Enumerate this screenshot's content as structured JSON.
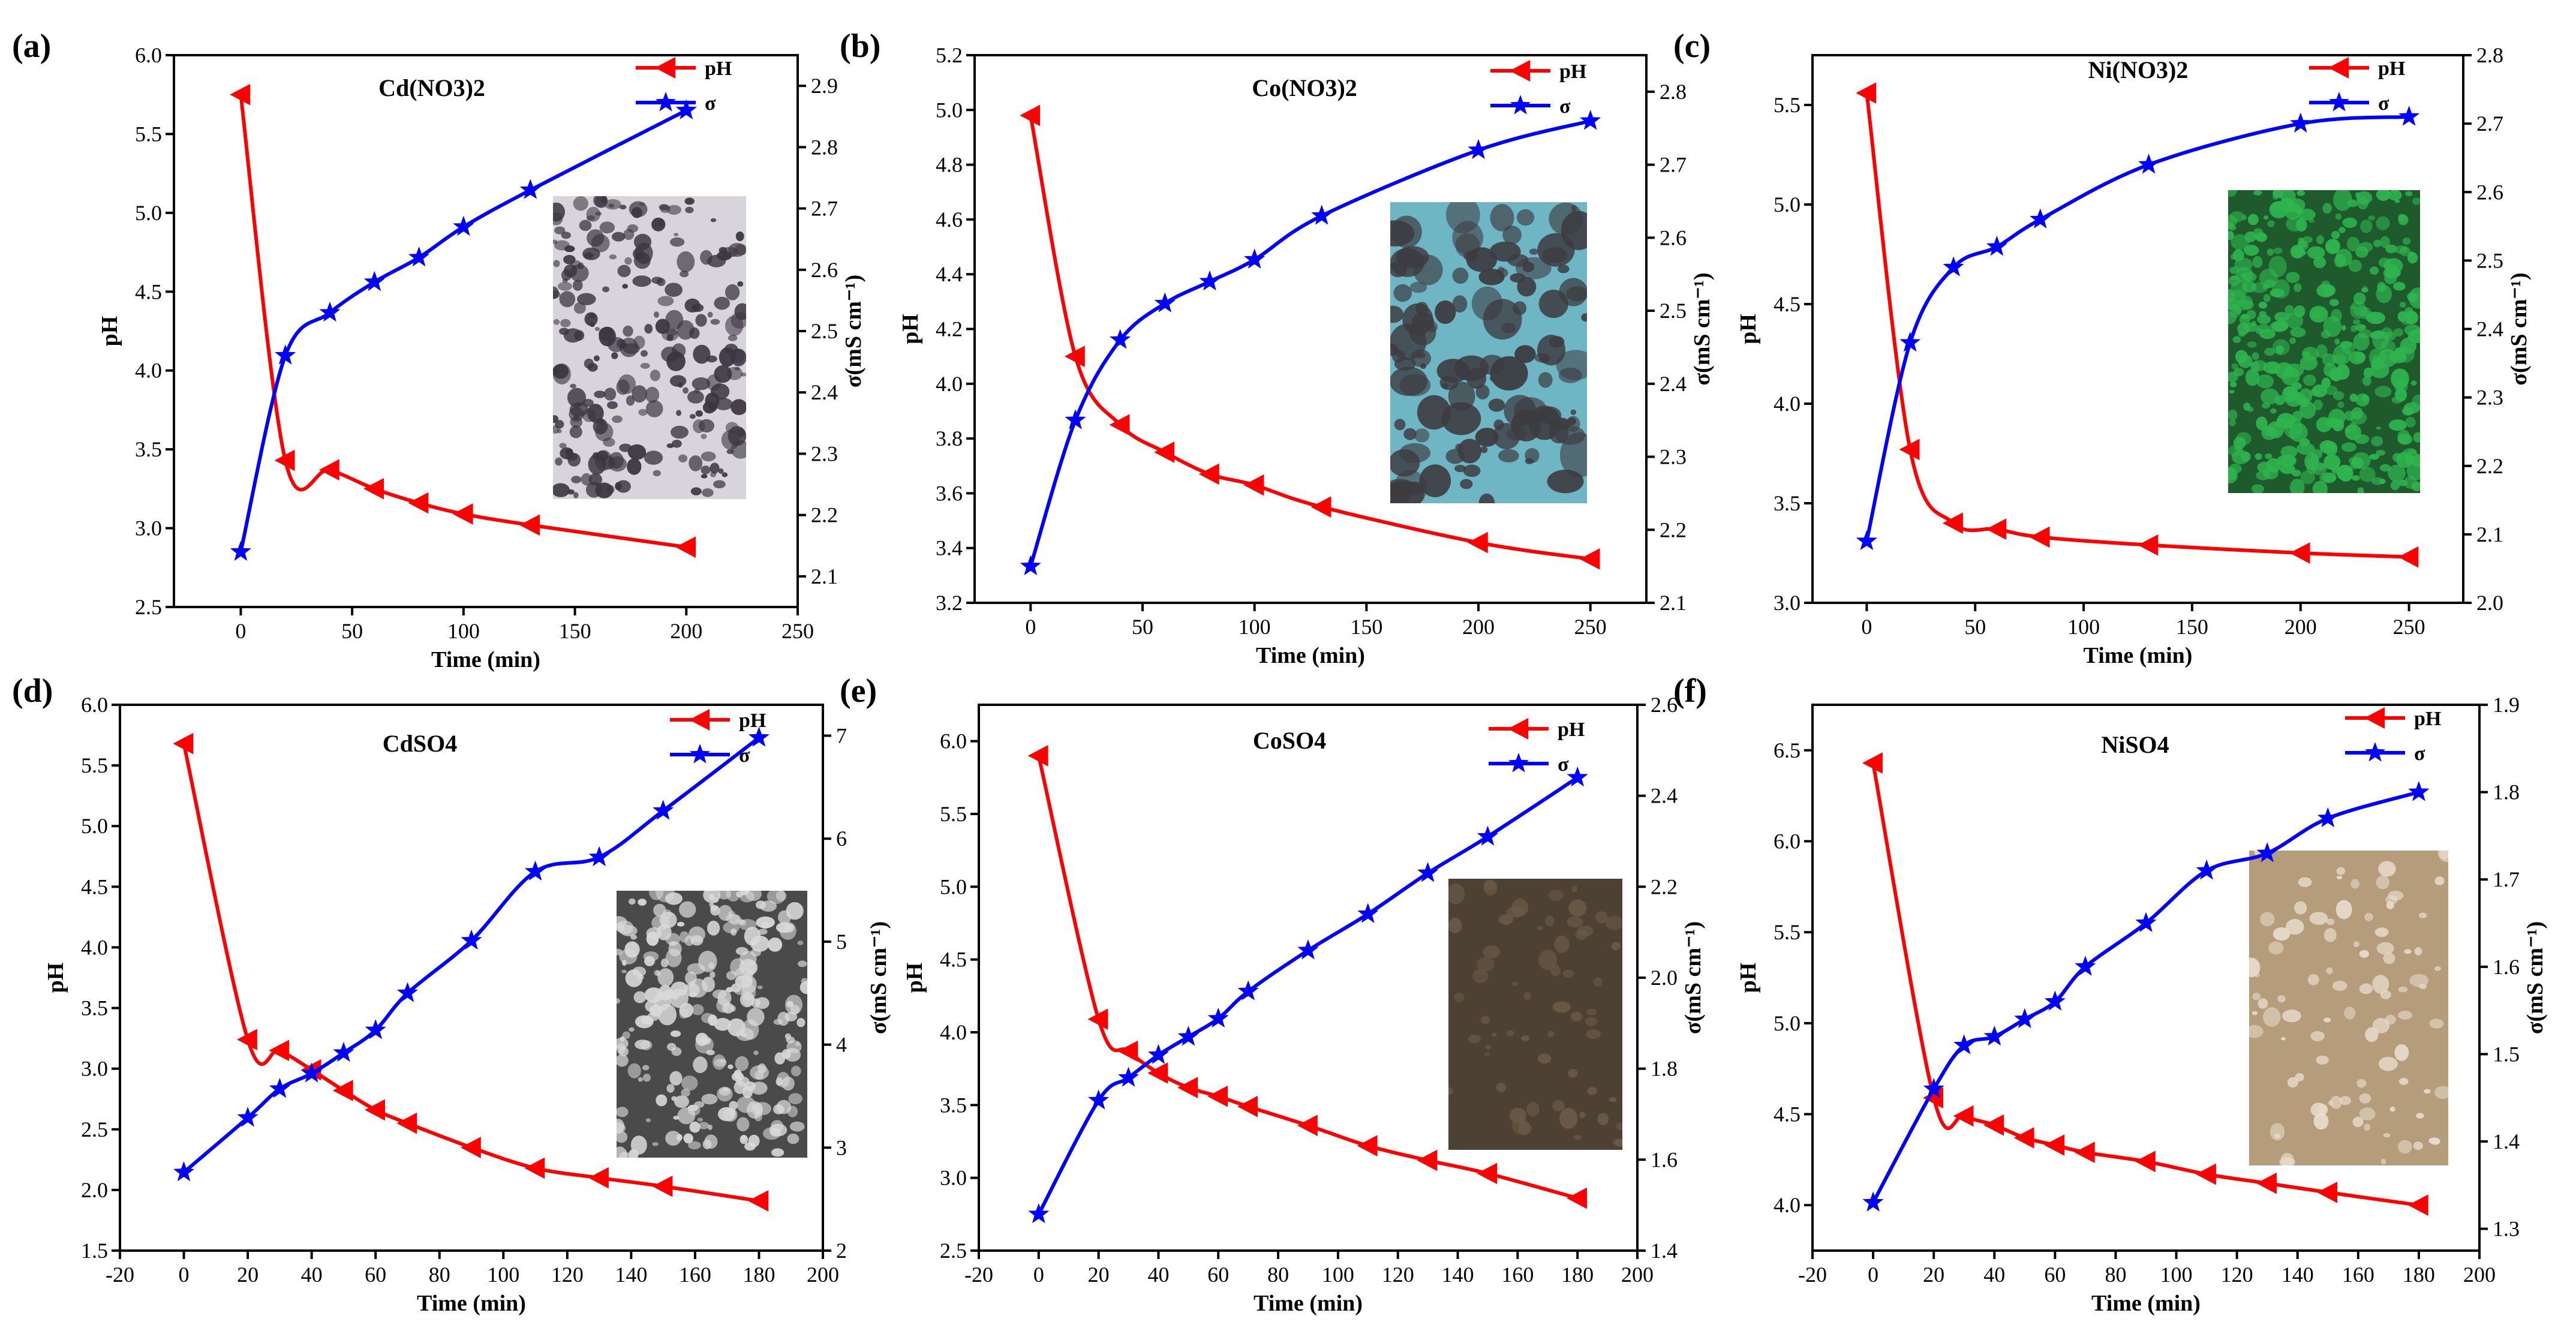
{
  "colors": {
    "ph": "#ff0000",
    "sigma": "#0000ff",
    "axis": "#000000"
  },
  "chart_data": [
    {
      "type": "line",
      "panel_label": "(a)",
      "title": "Cd(NO3)2",
      "xlabel": "Time (min)",
      "ylabel": "pH",
      "y2label": "σ(mS cm⁻¹)",
      "xlim": [
        -30,
        250
      ],
      "xticks": [
        0,
        50,
        100,
        150,
        200,
        250
      ],
      "ylim": [
        2.5,
        6.0
      ],
      "yticks": [
        2.5,
        3.0,
        3.5,
        4.0,
        4.5,
        5.0,
        5.5,
        6.0
      ],
      "y2lim": [
        2.05,
        2.95
      ],
      "y2ticks": [
        2.1,
        2.2,
        2.3,
        2.4,
        2.5,
        2.6,
        2.7,
        2.8,
        2.9
      ],
      "legend": [
        "pH",
        "σ"
      ],
      "inset": "bsd-cd-no3-deposit",
      "series": [
        {
          "name": "pH",
          "axis": "left",
          "marker": "triangle-left",
          "x": [
            0,
            20,
            40,
            60,
            80,
            100,
            130,
            200
          ],
          "y": [
            5.75,
            3.43,
            3.37,
            3.25,
            3.16,
            3.09,
            3.02,
            2.88
          ]
        },
        {
          "name": "σ",
          "axis": "right",
          "marker": "star",
          "x": [
            0,
            20,
            40,
            60,
            80,
            100,
            130,
            200
          ],
          "y": [
            2.14,
            2.46,
            2.53,
            2.58,
            2.62,
            2.67,
            2.73,
            2.86
          ]
        }
      ]
    },
    {
      "type": "line",
      "panel_label": "(b)",
      "title": "Co(NO3)2",
      "xlabel": "Time (min)",
      "ylabel": "pH",
      "y2label": "σ(mS cm⁻¹)",
      "xlim": [
        -25,
        275
      ],
      "xticks": [
        0,
        50,
        100,
        150,
        200,
        250
      ],
      "ylim": [
        3.2,
        5.2
      ],
      "yticks": [
        3.2,
        3.4,
        3.6,
        3.8,
        4.0,
        4.2,
        4.4,
        4.6,
        4.8,
        5.0,
        5.2
      ],
      "y2lim": [
        2.1,
        2.85
      ],
      "y2ticks": [
        2.1,
        2.2,
        2.3,
        2.4,
        2.5,
        2.6,
        2.7,
        2.8
      ],
      "legend": [
        "pH",
        "σ"
      ],
      "inset": "bsd-co-no3-deposit",
      "series": [
        {
          "name": "pH",
          "axis": "left",
          "marker": "triangle-left",
          "x": [
            0,
            20,
            40,
            60,
            80,
            100,
            130,
            200,
            250
          ],
          "y": [
            4.98,
            4.1,
            3.85,
            3.75,
            3.67,
            3.63,
            3.55,
            3.42,
            3.36
          ]
        },
        {
          "name": "σ",
          "axis": "right",
          "marker": "star",
          "x": [
            0,
            20,
            40,
            60,
            80,
            100,
            130,
            200,
            250
          ],
          "y": [
            2.15,
            2.35,
            2.46,
            2.51,
            2.54,
            2.57,
            2.63,
            2.72,
            2.76
          ]
        }
      ]
    },
    {
      "type": "line",
      "panel_label": "(c)",
      "title": "Ni(NO3)2",
      "xlabel": "Time (min)",
      "ylabel": "pH",
      "y2label": "σ(mS cm⁻¹)",
      "xlim": [
        -25,
        275
      ],
      "xticks": [
        0,
        50,
        100,
        150,
        200,
        250
      ],
      "ylim": [
        3.0,
        5.75
      ],
      "yticks": [
        3.0,
        3.5,
        4.0,
        4.5,
        5.0,
        5.5
      ],
      "y2lim": [
        2.0,
        2.8
      ],
      "y2ticks": [
        2.0,
        2.1,
        2.2,
        2.3,
        2.4,
        2.5,
        2.6,
        2.7,
        2.8
      ],
      "legend": [
        "pH",
        "σ"
      ],
      "inset": "bsd-ni-no3-deposit",
      "series": [
        {
          "name": "pH",
          "axis": "left",
          "marker": "triangle-left",
          "x": [
            0,
            20,
            40,
            60,
            80,
            130,
            200,
            250
          ],
          "y": [
            5.56,
            3.77,
            3.4,
            3.37,
            3.33,
            3.29,
            3.25,
            3.23
          ]
        },
        {
          "name": "σ",
          "axis": "right",
          "marker": "star",
          "x": [
            0,
            20,
            40,
            60,
            80,
            130,
            200,
            250
          ],
          "y": [
            2.09,
            2.38,
            2.49,
            2.52,
            2.56,
            2.64,
            2.7,
            2.71
          ]
        }
      ]
    },
    {
      "type": "line",
      "panel_label": "(d)",
      "title": "CdSO4",
      "xlabel": "Time (min)",
      "ylabel": "pH",
      "y2label": "σ(mS cm⁻¹)",
      "xlim": [
        -20,
        200
      ],
      "xticks": [
        -20,
        0,
        20,
        40,
        60,
        80,
        100,
        120,
        140,
        160,
        180,
        200
      ],
      "ylim": [
        1.5,
        6.0
      ],
      "yticks": [
        1.5,
        2.0,
        2.5,
        3.0,
        3.5,
        4.0,
        4.5,
        5.0,
        5.5,
        6.0
      ],
      "y2lim": [
        2,
        7.3
      ],
      "y2ticks": [
        2,
        3,
        4,
        5,
        6,
        7
      ],
      "legend": [
        "pH",
        "σ"
      ],
      "inset": "bsd-cdso4-deposit",
      "series": [
        {
          "name": "pH",
          "axis": "left",
          "marker": "triangle-left",
          "x": [
            0,
            20,
            30,
            40,
            50,
            60,
            70,
            90,
            110,
            130,
            150,
            180
          ],
          "y": [
            5.68,
            3.24,
            3.15,
            2.99,
            2.82,
            2.66,
            2.55,
            2.35,
            2.18,
            2.1,
            2.03,
            1.91
          ]
        },
        {
          "name": "σ",
          "axis": "right",
          "marker": "star",
          "x": [
            0,
            20,
            30,
            40,
            50,
            60,
            70,
            90,
            110,
            130,
            150,
            180
          ],
          "y": [
            2.76,
            3.29,
            3.57,
            3.72,
            3.92,
            4.14,
            4.5,
            5.01,
            5.68,
            5.82,
            6.27,
            6.98
          ]
        }
      ]
    },
    {
      "type": "line",
      "panel_label": "(e)",
      "title": "CoSO4",
      "xlabel": "Time (min)",
      "ylabel": "pH",
      "y2label": "σ(mS cm⁻¹)",
      "xlim": [
        -20,
        200
      ],
      "xticks": [
        -20,
        0,
        20,
        40,
        60,
        80,
        100,
        120,
        140,
        160,
        180,
        200
      ],
      "ylim": [
        2.5,
        6.25
      ],
      "yticks": [
        2.5,
        3.0,
        3.5,
        4.0,
        4.5,
        5.0,
        5.5,
        6.0
      ],
      "y2lim": [
        1.4,
        2.6
      ],
      "y2ticks": [
        1.4,
        1.6,
        1.8,
        2.0,
        2.2,
        2.4,
        2.6
      ],
      "legend": [
        "pH",
        "σ"
      ],
      "inset": "bsd-coso4-deposit",
      "series": [
        {
          "name": "pH",
          "axis": "left",
          "marker": "triangle-left",
          "x": [
            0,
            20,
            30,
            40,
            50,
            60,
            70,
            90,
            110,
            130,
            150,
            180
          ],
          "y": [
            5.9,
            4.09,
            3.87,
            3.72,
            3.62,
            3.56,
            3.49,
            3.36,
            3.22,
            3.12,
            3.03,
            2.86
          ]
        },
        {
          "name": "σ",
          "axis": "right",
          "marker": "star",
          "x": [
            0,
            20,
            30,
            40,
            50,
            60,
            70,
            90,
            110,
            130,
            150,
            180
          ],
          "y": [
            1.48,
            1.73,
            1.78,
            1.83,
            1.87,
            1.91,
            1.97,
            2.06,
            2.14,
            2.23,
            2.31,
            2.44
          ]
        }
      ]
    },
    {
      "type": "line",
      "panel_label": "(f)",
      "title": "NiSO4",
      "xlabel": "Time (min)",
      "ylabel": "pH",
      "y2label": "σ(mS cm⁻¹)",
      "xlim": [
        -20,
        200
      ],
      "xticks": [
        -20,
        0,
        20,
        40,
        60,
        80,
        100,
        120,
        140,
        160,
        180,
        200
      ],
      "ylim": [
        3.75,
        6.75
      ],
      "yticks": [
        4.0,
        4.5,
        5.0,
        5.5,
        6.0,
        6.5
      ],
      "y2lim": [
        1.275,
        1.9
      ],
      "y2ticks": [
        1.3,
        1.4,
        1.5,
        1.6,
        1.7,
        1.8,
        1.9
      ],
      "legend": [
        "pH",
        "σ"
      ],
      "inset": "bsd-niso4-deposit",
      "series": [
        {
          "name": "pH",
          "axis": "left",
          "marker": "triangle-left",
          "x": [
            0,
            20,
            30,
            40,
            50,
            60,
            70,
            90,
            110,
            130,
            150,
            180
          ],
          "y": [
            6.43,
            4.59,
            4.49,
            4.44,
            4.37,
            4.33,
            4.29,
            4.24,
            4.17,
            4.12,
            4.07,
            4.0
          ]
        },
        {
          "name": "σ",
          "axis": "right",
          "marker": "star",
          "x": [
            0,
            20,
            30,
            40,
            50,
            60,
            70,
            90,
            110,
            130,
            150,
            180
          ],
          "y": [
            1.33,
            1.46,
            1.51,
            1.52,
            1.54,
            1.56,
            1.6,
            1.65,
            1.71,
            1.73,
            1.77,
            1.8
          ]
        }
      ]
    }
  ]
}
